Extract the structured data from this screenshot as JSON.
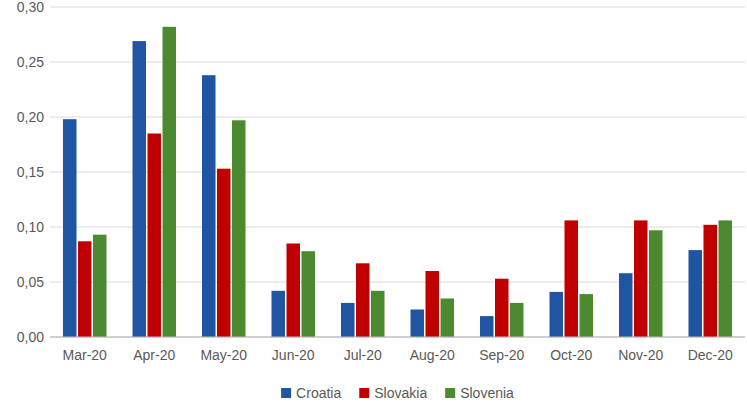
{
  "chart_data": {
    "type": "bar",
    "categories": [
      "Mar-20",
      "Apr-20",
      "May-20",
      "Jun-20",
      "Jul-20",
      "Aug-20",
      "Sep-20",
      "Oct-20",
      "Nov-20",
      "Dec-20"
    ],
    "series": [
      {
        "name": "Croatia",
        "color": "#1f55a3",
        "values": [
          0.198,
          0.269,
          0.238,
          0.042,
          0.031,
          0.025,
          0.019,
          0.041,
          0.058,
          0.079
        ]
      },
      {
        "name": "Slovakia",
        "color": "#c00000",
        "values": [
          0.087,
          0.185,
          0.153,
          0.085,
          0.067,
          0.06,
          0.053,
          0.106,
          0.106,
          0.102
        ]
      },
      {
        "name": "Slovenia",
        "color": "#4b8a2e",
        "values": [
          0.093,
          0.282,
          0.197,
          0.078,
          0.042,
          0.035,
          0.031,
          0.039,
          0.097,
          0.106
        ]
      }
    ],
    "ylim": [
      0,
      0.3
    ],
    "yticks": [
      {
        "value": 0,
        "label": "0,00"
      },
      {
        "value": 0.05,
        "label": "0,05"
      },
      {
        "value": 0.1,
        "label": "0,10"
      },
      {
        "value": 0.15,
        "label": "0,15"
      },
      {
        "value": 0.2,
        "label": "0,20"
      },
      {
        "value": 0.25,
        "label": "0,25"
      },
      {
        "value": 0.3,
        "label": "0,30"
      }
    ],
    "grid": true,
    "legend": "bottom"
  }
}
